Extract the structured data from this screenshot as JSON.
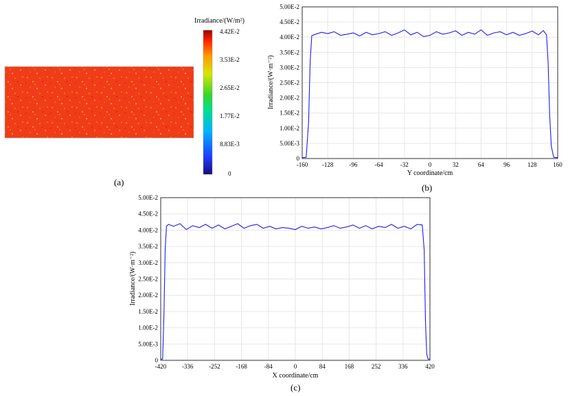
{
  "panel_labels": {
    "a": "(a)",
    "b": "(b)",
    "c": "(c)"
  },
  "colorbar": {
    "title": "Irradiance/(W/m²)",
    "ticks": [
      "4.42E-2",
      "3.53E-2",
      "2.65E-2",
      "1.77E-2",
      "8.83E-3",
      "0"
    ],
    "colormap": "jet",
    "min": 0,
    "max": 0.0442
  },
  "heatmap": {
    "level_min": 0.0395,
    "level_max": 0.0425
  },
  "chart_data": [
    {
      "id": "b",
      "type": "line",
      "xlabel": "Y coordinate/cm",
      "ylabel": "Irradiance/(W·m⁻²)",
      "xticks": [
        -160,
        -128,
        -96,
        -64,
        -32,
        0,
        32,
        64,
        96,
        128,
        160
      ],
      "ytick_labels": [
        "0",
        "5.00E-3",
        "1.00E-2",
        "1.50E-2",
        "2.00E-2",
        "2.50E-2",
        "3.00E-2",
        "3.50E-2",
        "4.00E-2",
        "4.50E-2",
        "5.00E-2"
      ],
      "xlim": [
        -160,
        160
      ],
      "ylim": [
        0,
        0.05
      ],
      "grid": true,
      "color": "#1a1aff",
      "series": [
        {
          "x": [
            -160,
            -155,
            -152,
            -150,
            -148,
            -144,
            -136,
            -128,
            -120,
            -112,
            -104,
            -96,
            -88,
            -80,
            -72,
            -64,
            -56,
            -48,
            -40,
            -32,
            -24,
            -16,
            -8,
            0,
            8,
            16,
            24,
            32,
            40,
            48,
            56,
            64,
            72,
            80,
            88,
            96,
            104,
            112,
            120,
            128,
            136,
            142,
            146,
            148,
            150,
            152,
            155,
            160
          ],
          "y": [
            0.0003,
            0.0004,
            0.012,
            0.032,
            0.0405,
            0.0409,
            0.0416,
            0.0412,
            0.0418,
            0.0406,
            0.041,
            0.0414,
            0.0404,
            0.0416,
            0.0408,
            0.0412,
            0.0418,
            0.0406,
            0.0414,
            0.0424,
            0.0408,
            0.0416,
            0.0402,
            0.0406,
            0.0418,
            0.041,
            0.0414,
            0.0421,
            0.0406,
            0.0416,
            0.041,
            0.0424,
            0.0406,
            0.0414,
            0.0418,
            0.0408,
            0.0416,
            0.0406,
            0.0412,
            0.042,
            0.0408,
            0.0422,
            0.0408,
            0.032,
            0.014,
            0.004,
            0.0004,
            0.0003
          ]
        }
      ]
    },
    {
      "id": "c",
      "type": "line",
      "xlabel": "X coordinate/cm",
      "ylabel": "Irradiance/(W·m⁻²)",
      "xticks": [
        -420,
        -336,
        -252,
        -168,
        -84,
        0,
        84,
        168,
        252,
        336,
        420
      ],
      "ytick_labels": [
        "0",
        "5.00E-3",
        "1.00E-2",
        "1.50E-2",
        "2.00E-2",
        "2.50E-2",
        "3.00E-2",
        "3.50E-2",
        "4.00E-2",
        "4.50E-2",
        "5.00E-2"
      ],
      "xlim": [
        -420,
        420
      ],
      "ylim": [
        0,
        0.05
      ],
      "grid": true,
      "color": "#1a1aff",
      "series": [
        {
          "x": [
            -420,
            -414,
            -410,
            -406,
            -402,
            -396,
            -380,
            -360,
            -340,
            -320,
            -300,
            -280,
            -260,
            -240,
            -220,
            -200,
            -180,
            -160,
            -140,
            -120,
            -100,
            -80,
            -60,
            -40,
            -20,
            0,
            20,
            40,
            60,
            80,
            100,
            120,
            140,
            160,
            180,
            200,
            220,
            240,
            260,
            280,
            300,
            320,
            340,
            360,
            380,
            396,
            402,
            406,
            410,
            414,
            420
          ],
          "y": [
            0.0003,
            0.0004,
            0.014,
            0.034,
            0.0412,
            0.0418,
            0.0412,
            0.042,
            0.0402,
            0.0414,
            0.0408,
            0.0418,
            0.0406,
            0.0416,
            0.0404,
            0.0412,
            0.042,
            0.0406,
            0.0414,
            0.0418,
            0.0406,
            0.0412,
            0.0404,
            0.0408,
            0.0406,
            0.0402,
            0.0412,
            0.0406,
            0.041,
            0.0404,
            0.0408,
            0.0414,
            0.0406,
            0.041,
            0.0416,
            0.0406,
            0.0414,
            0.0404,
            0.0412,
            0.0408,
            0.0418,
            0.0406,
            0.0412,
            0.0404,
            0.0418,
            0.0416,
            0.034,
            0.012,
            0.002,
            0.0004,
            0.0003
          ]
        }
      ]
    }
  ]
}
